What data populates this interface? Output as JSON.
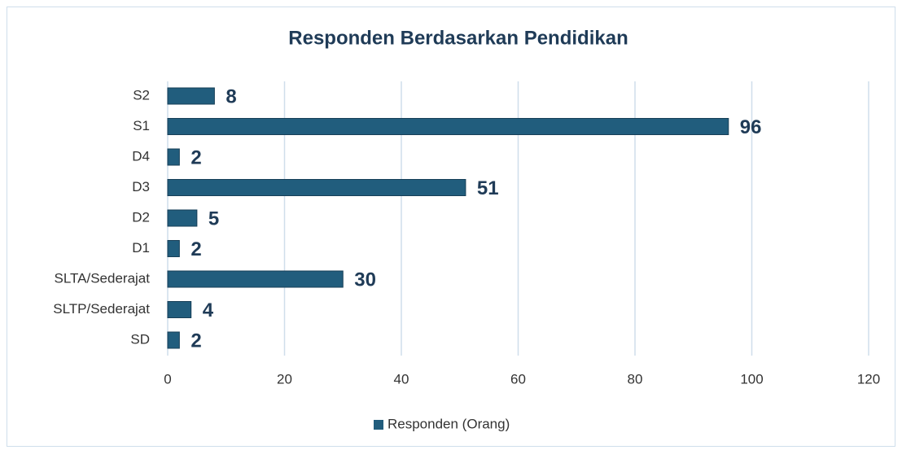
{
  "chart_data": {
    "type": "bar",
    "orientation": "horizontal",
    "title": "Responden Berdasarkan Pendidikan",
    "categories": [
      "S2",
      "S1",
      "D4",
      "D3",
      "D2",
      "D1",
      "SLTA/Sederajat",
      "SLTP/Sederajat",
      "SD"
    ],
    "series": [
      {
        "name": "Responden (Orang)",
        "color": "#215d7d",
        "values": [
          8,
          96,
          2,
          51,
          5,
          2,
          30,
          4,
          2
        ]
      }
    ],
    "xlim": [
      0,
      120
    ],
    "xticks": [
      0,
      20,
      40,
      60,
      80,
      100,
      120
    ],
    "grid": true,
    "legend": "bottom"
  }
}
